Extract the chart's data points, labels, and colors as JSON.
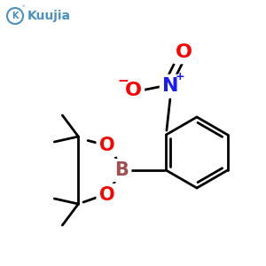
{
  "bg_color": "#ffffff",
  "logo_text": "Kuujia",
  "logo_color": "#4a90c4",
  "bond_color": "#000000",
  "bond_width": 2.0,
  "atom_colors": {
    "O": "#ff0000",
    "N": "#1a1aff",
    "B": "#a05050",
    "C": "#000000"
  },
  "font_size_atom": 15,
  "font_size_nitro": 16,
  "font_size_charge": 9,
  "font_size_logo": 10
}
